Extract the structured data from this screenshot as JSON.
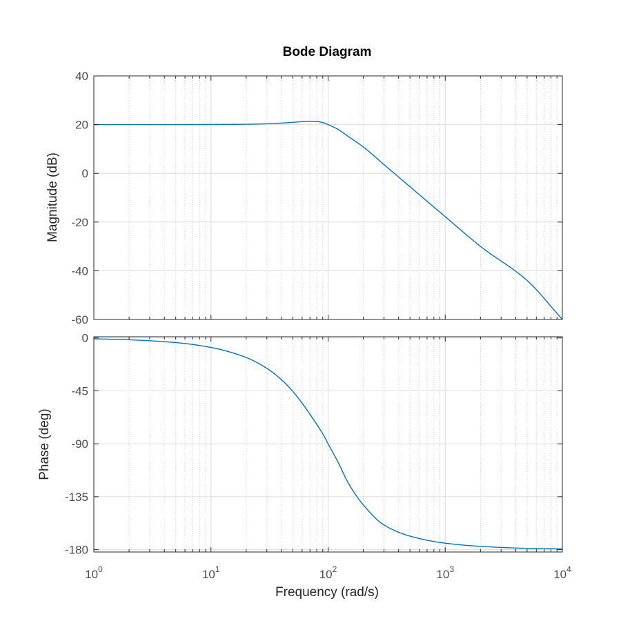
{
  "chart_data": {
    "type": "line",
    "title": "Bode Diagram",
    "xlabel": "Frequency  (rad/s)",
    "x_scale": "log",
    "xlim": [
      1,
      10000
    ],
    "x_ticks": [
      {
        "base": "10",
        "exp": "0"
      },
      {
        "base": "10",
        "exp": "1"
      },
      {
        "base": "10",
        "exp": "2"
      },
      {
        "base": "10",
        "exp": "3"
      },
      {
        "base": "10",
        "exp": "4"
      }
    ],
    "grid": true,
    "line_color": "#0072BD",
    "panels": [
      {
        "id": "magnitude",
        "ylabel": "Magnitude (dB)",
        "ylim": [
          -60,
          40
        ],
        "yticks": [
          "40",
          "20",
          "0",
          "-20",
          "-40",
          "-60"
        ],
        "ytick_values": [
          40,
          20,
          0,
          -20,
          -40,
          -60
        ],
        "series": {
          "x": [
            1,
            2,
            5,
            10,
            20,
            30,
            40,
            50,
            60,
            70,
            80,
            90,
            100,
            120,
            150,
            200,
            300,
            500,
            1000,
            2000,
            5000,
            10000
          ],
          "y": [
            20.0,
            20.0,
            20.0,
            20.04,
            20.15,
            20.35,
            20.63,
            20.93,
            21.2,
            21.33,
            21.25,
            20.85,
            20.0,
            18.2,
            15.0,
            10.8,
            3.6,
            -5.5,
            -17.8,
            -30.0,
            -44.0,
            -60.0
          ]
        }
      },
      {
        "id": "phase",
        "ylabel": "Phase (deg)",
        "ylim": [
          -182,
          1
        ],
        "yticks": [
          "0",
          "-45",
          "-90",
          "-135",
          "-180"
        ],
        "ytick_values": [
          0,
          -45,
          -90,
          -135,
          -180
        ],
        "series": {
          "x": [
            1,
            2,
            5,
            10,
            20,
            30,
            40,
            50,
            60,
            70,
            80,
            90,
            100,
            120,
            150,
            200,
            300,
            500,
            1000,
            2000,
            5000,
            10000
          ],
          "y": [
            -0.8,
            -1.6,
            -4.0,
            -8.1,
            -16.7,
            -25.9,
            -35.6,
            -45.5,
            -55.5,
            -64.9,
            -73.5,
            -81.5,
            -90.0,
            -104.5,
            -124.0,
            -142.0,
            -159.0,
            -168.5,
            -174.5,
            -177.2,
            -178.9,
            -179.4
          ]
        }
      }
    ]
  }
}
